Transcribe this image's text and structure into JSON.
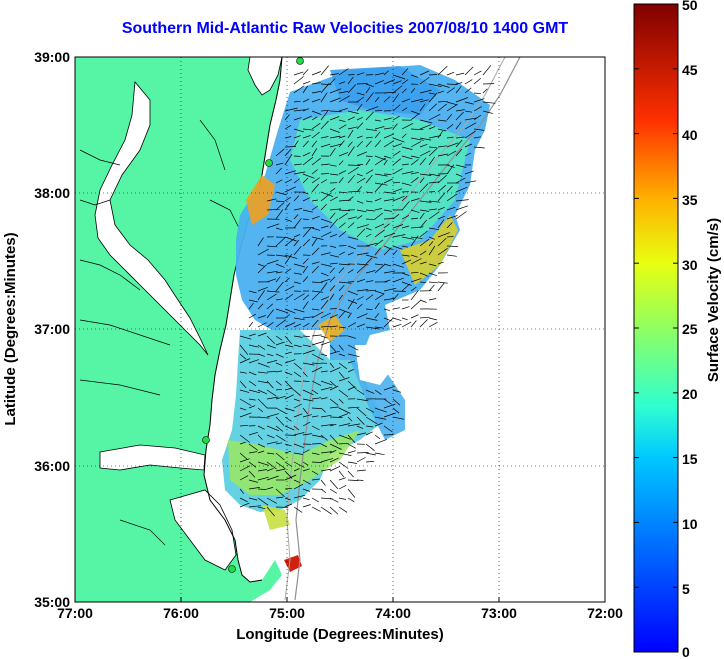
{
  "title": "Southern Mid-Atlantic Raw Velocities 2007/08/10 1400 GMT",
  "map": {
    "xlabel": "Longitude (Degrees:Minutes)",
    "ylabel": "Latitude (Degrees:Minutes)",
    "x_ticks": [
      "77:00",
      "76:00",
      "75:00",
      "74:00",
      "73:00",
      "72:00"
    ],
    "y_ticks": [
      "39:00",
      "38:00",
      "37:00",
      "36:00",
      "35:00"
    ],
    "lon_range": [
      -77,
      -72
    ],
    "lat_range": [
      35,
      39
    ],
    "land_color": "#55f5a5",
    "grid": true
  },
  "colorbar": {
    "label": "Surface Velocity (cm/s)",
    "ticks": [
      "50",
      "45",
      "40",
      "35",
      "30",
      "25",
      "20",
      "15",
      "10",
      "5",
      "0"
    ],
    "range": [
      0,
      50
    ],
    "colormap": "jet"
  }
}
